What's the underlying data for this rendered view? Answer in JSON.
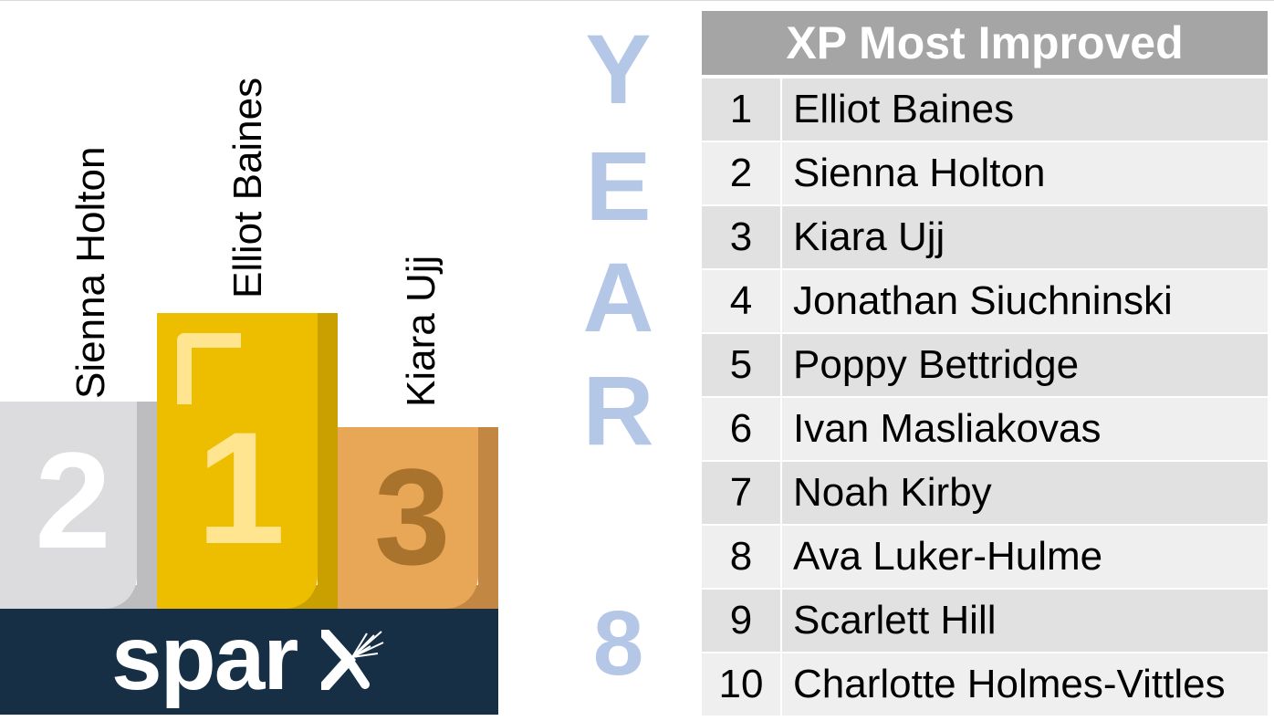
{
  "podium": {
    "first": {
      "rank": "1",
      "name": "Elliot Baines"
    },
    "second": {
      "rank": "2",
      "name": "Sienna Holton"
    },
    "third": {
      "rank": "3",
      "name": "Kiara Ujj"
    }
  },
  "brand": {
    "text": "spar",
    "logo_icon": "sparx-x-icon"
  },
  "year": {
    "letters": [
      "Y",
      "E",
      "A",
      "R"
    ],
    "number": "8"
  },
  "table": {
    "title": "XP Most Improved",
    "rows": [
      {
        "rank": "1",
        "name": "Elliot Baines"
      },
      {
        "rank": "2",
        "name": "Sienna Holton"
      },
      {
        "rank": "3",
        "name": "Kiara Ujj"
      },
      {
        "rank": "4",
        "name": "Jonathan Siuchninski"
      },
      {
        "rank": "5",
        "name": "Poppy Bettridge"
      },
      {
        "rank": "6",
        "name": "Ivan Masliakovas"
      },
      {
        "rank": "7",
        "name": "Noah Kirby"
      },
      {
        "rank": "8",
        "name": "Ava Luker-Hulme"
      },
      {
        "rank": "9",
        "name": "Scarlett Hill"
      },
      {
        "rank": "10",
        "name": "Charlotte Holmes-Vittles"
      }
    ]
  },
  "colors": {
    "gold": "#edbe00",
    "silver": "#dcdcde",
    "bronze": "#e8a657",
    "brand_bar": "#172f45",
    "year_text": "#b4c7e7",
    "table_header": "#a5a5a5"
  }
}
